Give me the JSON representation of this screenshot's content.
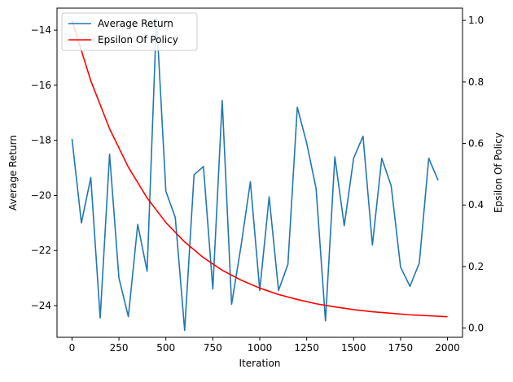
{
  "chart_data": {
    "type": "line",
    "xlabel": "Iteration",
    "ylabel": "Average Return",
    "y2label": "Epsilon Of Policy",
    "xlim": [
      -80,
      2080
    ],
    "ylim": [
      -25.15,
      -13.2
    ],
    "y2lim": [
      -0.03,
      1.04
    ],
    "xticks": [
      0,
      250,
      500,
      750,
      1000,
      1250,
      1500,
      1750,
      2000
    ],
    "yticks": [
      -24,
      -22,
      -20,
      -18,
      -16,
      -14
    ],
    "y2ticks": [
      0.0,
      0.2,
      0.4,
      0.6,
      0.8,
      1.0
    ],
    "legend_position": "top-left",
    "series": [
      {
        "name": "Average Return",
        "axis": "left",
        "color": "#1f77b4",
        "x": [
          0,
          50,
          100,
          150,
          200,
          250,
          300,
          350,
          400,
          450,
          500,
          550,
          600,
          650,
          700,
          750,
          800,
          850,
          900,
          950,
          1000,
          1050,
          1100,
          1150,
          1200,
          1250,
          1300,
          1350,
          1400,
          1450,
          1500,
          1550,
          1600,
          1650,
          1700,
          1750,
          1800,
          1850,
          1900,
          1950
        ],
        "y": [
          -17.95,
          -21.0,
          -19.35,
          -24.45,
          -18.5,
          -23.0,
          -24.4,
          -21.05,
          -22.75,
          -13.55,
          -19.85,
          -20.8,
          -24.9,
          -19.25,
          -18.95,
          -23.4,
          -16.55,
          -23.95,
          -21.85,
          -19.5,
          -23.45,
          -20.05,
          -23.45,
          -22.5,
          -16.8,
          -18.1,
          -19.75,
          -24.55,
          -18.6,
          -21.1,
          -18.65,
          -17.85,
          -21.8,
          -18.65,
          -19.65,
          -22.6,
          -23.3,
          -22.45,
          -18.65,
          -19.45
        ]
      },
      {
        "name": "Epsilon Of Policy",
        "axis": "right",
        "color": "#ff0000",
        "x": [
          0,
          100,
          200,
          300,
          400,
          500,
          600,
          700,
          800,
          900,
          1000,
          1100,
          1200,
          1300,
          1400,
          1500,
          1600,
          1700,
          1800,
          1900,
          2000
        ],
        "y": [
          1.0,
          0.804,
          0.648,
          0.523,
          0.423,
          0.343,
          0.28,
          0.229,
          0.188,
          0.156,
          0.13,
          0.109,
          0.093,
          0.079,
          0.069,
          0.06,
          0.053,
          0.048,
          0.043,
          0.04,
          0.037
        ]
      }
    ]
  }
}
